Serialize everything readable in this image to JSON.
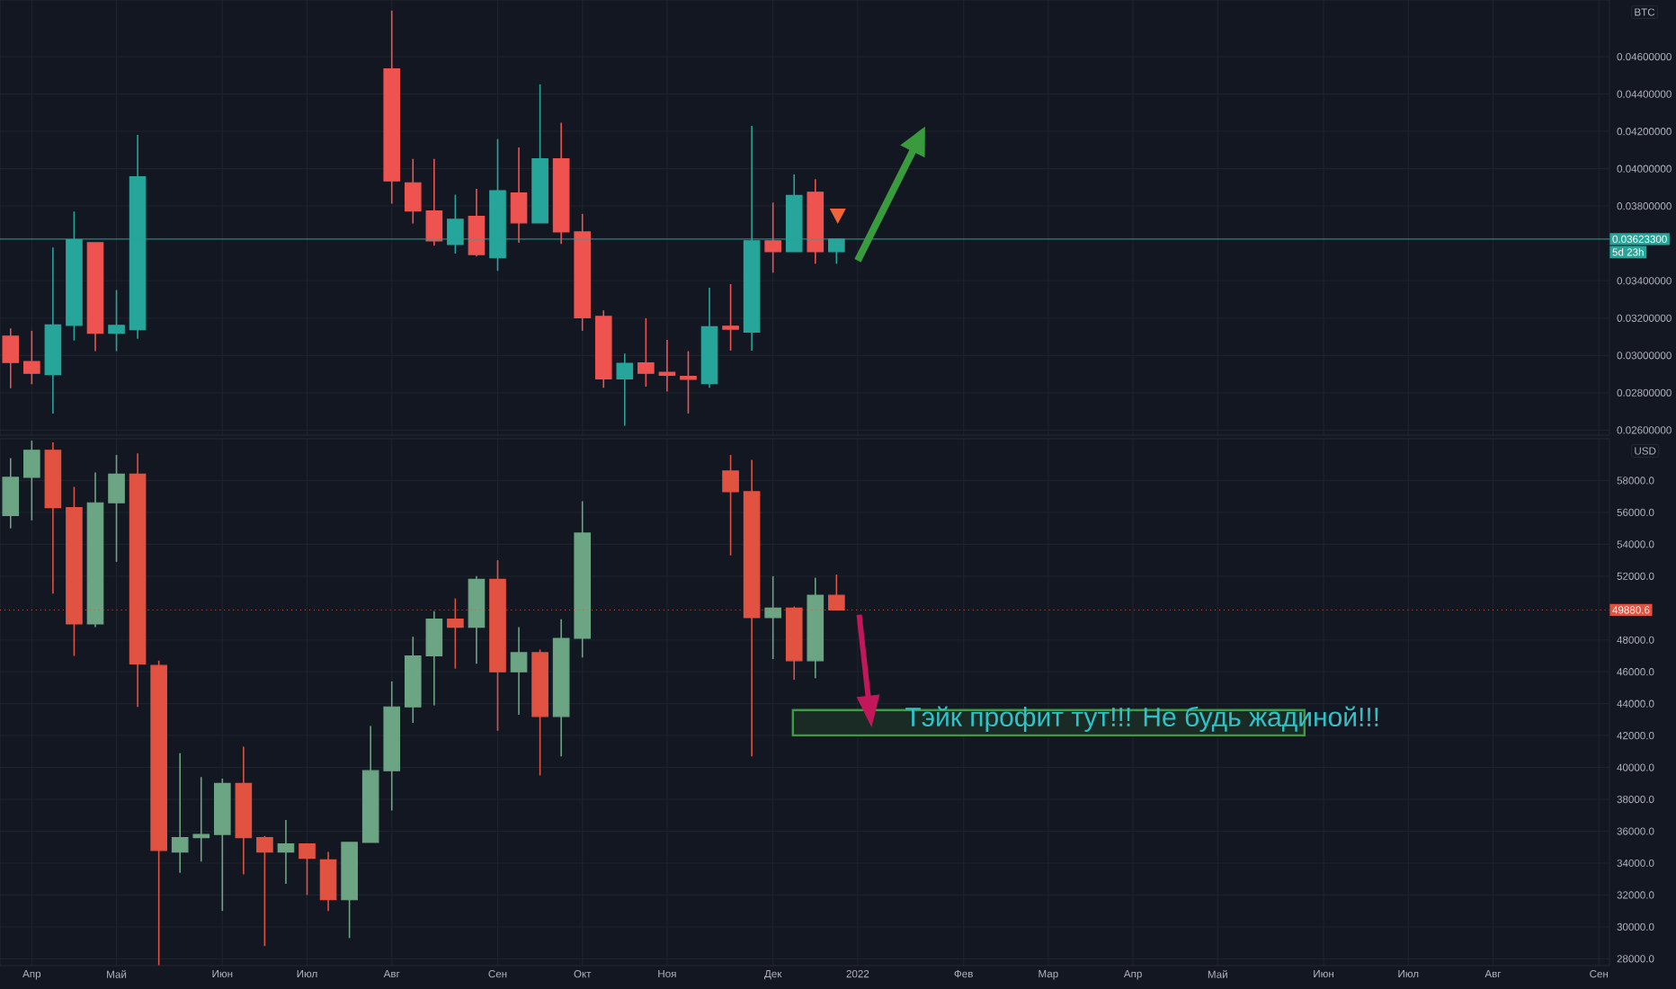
{
  "chart_data": [
    {
      "type": "candlestick",
      "ylabel": "BTC",
      "grid": true,
      "categories": [
        null,
        null,
        null,
        null,
        null,
        null,
        null,
        null,
        null,
        null,
        null,
        null,
        null,
        null,
        null,
        null,
        null,
        null,
        null,
        null,
        null,
        null,
        null,
        null,
        null,
        null,
        null,
        null,
        null,
        null,
        null,
        null,
        null,
        null,
        null,
        null,
        null,
        null,
        null,
        null,
        null,
        null,
        null,
        null,
        null,
        null,
        null,
        null,
        null,
        null,
        null,
        null,
        null,
        null,
        null,
        null,
        null,
        null,
        null,
        null,
        null,
        null,
        null,
        null,
        null,
        null,
        null,
        null,
        null,
        null,
        null,
        null,
        null,
        null,
        null,
        null
      ],
      "ohlc": [
        [
          0.03103,
          0.03145,
          0.02824,
          0.02962
        ],
        [
          0.02968,
          0.03132,
          0.02846,
          0.02904
        ],
        [
          0.02897,
          0.03578,
          0.02689,
          0.03164
        ],
        [
          0.03161,
          0.03771,
          0.0308,
          0.0362
        ],
        [
          0.03604,
          0.03604,
          0.03023,
          0.03119
        ],
        [
          0.03119,
          0.0335,
          0.03023,
          0.03161
        ],
        [
          0.03138,
          0.04182,
          0.0309,
          0.03957
        ],
        null,
        null,
        null,
        null,
        null,
        null,
        null,
        null,
        null,
        null,
        null,
        [
          0.04535,
          0.04847,
          0.03813,
          0.03935
        ],
        [
          0.03925,
          0.04053,
          0.03707,
          0.03774
        ],
        [
          0.03774,
          0.04053,
          0.03588,
          0.03614
        ],
        [
          0.03594,
          0.03861,
          0.03546,
          0.03729
        ],
        [
          0.03745,
          0.03893,
          0.0353,
          0.0354
        ],
        [
          0.03524,
          0.04159,
          0.03453,
          0.03883
        ],
        [
          0.0387,
          0.04114,
          0.03604,
          0.0371
        ],
        [
          0.0371,
          0.04452,
          0.0371,
          0.04053
        ],
        [
          0.04053,
          0.04246,
          0.03597,
          0.03662
        ],
        [
          0.03662,
          0.03758,
          0.03132,
          0.03202
        ],
        [
          0.03209,
          0.03241,
          0.02827,
          0.02875
        ],
        [
          0.02875,
          0.0301,
          0.02624,
          0.02958
        ],
        [
          0.0296,
          0.03199,
          0.02833,
          0.02904
        ],
        [
          0.0291,
          0.03084,
          0.02807,
          0.02894
        ],
        [
          0.02888,
          0.03023,
          0.02689,
          0.02872
        ],
        [
          0.02849,
          0.03363,
          0.02827,
          0.03154
        ],
        [
          0.03157,
          0.03382,
          0.03026,
          0.03141
        ],
        [
          0.03125,
          0.0423,
          0.03026,
          0.03614
        ],
        [
          0.03614,
          0.03819,
          0.03443,
          0.03556
        ],
        [
          0.03556,
          0.0397,
          0.03556,
          0.03857
        ],
        [
          0.03874,
          0.03944,
          0.03491,
          0.03556
        ],
        [
          0.03556,
          0.036233,
          0.03491,
          0.036233
        ],
        null,
        null,
        null,
        null,
        null,
        null,
        null,
        null,
        null,
        null,
        null,
        null,
        null,
        null,
        null,
        null,
        null,
        null,
        null,
        null,
        null,
        null,
        null,
        null,
        null,
        null,
        null,
        null,
        null,
        null,
        null,
        null,
        null,
        null,
        null,
        null
      ],
      "colors": [
        "#ef5350",
        "#ef5350",
        "#26a69a",
        "#26a69a",
        "#ef5350",
        "#26a69a",
        "#26a69a",
        null,
        null,
        null,
        null,
        null,
        null,
        null,
        null,
        null,
        null,
        null,
        "#ef5350",
        "#ef5350",
        "#ef5350",
        "#26a69a",
        "#ef5350",
        "#26a69a",
        "#ef5350",
        "#26a69a",
        "#ef5350",
        "#ef5350",
        "#ef5350",
        "#26a69a",
        "#ef5350",
        "#ef5350",
        "#ef5350",
        "#26a69a",
        "#ef5350",
        "#26a69a",
        "#ef5350",
        "#26a69a",
        "#ef5350",
        "#26a69a",
        null,
        null,
        null,
        null,
        null,
        null,
        null,
        null,
        null,
        null,
        null,
        null,
        null,
        null,
        null,
        null,
        null,
        null,
        null,
        null,
        null,
        null,
        null,
        null,
        null,
        null,
        null,
        null,
        null,
        null,
        null,
        null,
        null,
        null,
        null,
        null
      ],
      "ylim": [
        0.02573,
        0.04904
      ],
      "yticks": [
        {
          "value": 0.026,
          "label": "0.02600000"
        },
        {
          "value": 0.028,
          "label": "0.02800000"
        },
        {
          "value": 0.03,
          "label": "0.03000000"
        },
        {
          "value": 0.032,
          "label": "0.03200000"
        },
        {
          "value": 0.034,
          "label": "0.03400000"
        },
        {
          "value": 0.038,
          "label": "0.03800000"
        },
        {
          "value": 0.04,
          "label": "0.04000000"
        },
        {
          "value": 0.042,
          "label": "0.04200000"
        },
        {
          "value": 0.044,
          "label": "0.04400000"
        },
        {
          "value": 0.046,
          "label": "0.04600000"
        }
      ],
      "ref_lines": [
        {
          "axis": "y",
          "value": 0.036233,
          "label": "0.03623300",
          "color": "#26a69a",
          "line_style": "solid"
        }
      ],
      "annotations": [
        "5d 23h"
      ]
    },
    {
      "type": "candlestick",
      "ylabel": "USD",
      "grid": true,
      "categories": [
        null,
        "Апр",
        null,
        null,
        null,
        "Май",
        null,
        null,
        null,
        null,
        "Июн",
        null,
        null,
        null,
        "Июл",
        null,
        null,
        null,
        "Авг",
        null,
        null,
        null,
        null,
        "Сен",
        null,
        null,
        null,
        "Окт",
        null,
        null,
        null,
        "Ноя",
        null,
        null,
        null,
        null,
        "Дек",
        null,
        null,
        null,
        "2022",
        null,
        null,
        null,
        null,
        "Фев",
        null,
        null,
        null,
        "Мар",
        null,
        null,
        null,
        "Апр",
        null,
        null,
        null,
        "Май",
        null,
        null,
        null,
        null,
        "Июн",
        null,
        null,
        null,
        "Июл",
        null,
        null,
        null,
        "Авг",
        null,
        null,
        null,
        null,
        "Сен"
      ],
      "ohlc": [
        [
          55800,
          59400,
          55000,
          58200
        ],
        [
          58200,
          60500,
          55500,
          59900
        ],
        [
          59900,
          60400,
          50900,
          56300
        ],
        [
          56300,
          57600,
          47000,
          49000
        ],
        [
          49000,
          58500,
          48800,
          56600
        ],
        [
          56600,
          59600,
          52900,
          58400
        ],
        [
          58400,
          59700,
          43800,
          46500
        ],
        [
          46400,
          46700,
          27600,
          34800
        ],
        [
          34700,
          40900,
          33400,
          35600
        ],
        [
          35600,
          39400,
          34100,
          35800
        ],
        [
          35800,
          39300,
          31000,
          39000
        ],
        [
          39000,
          41300,
          33300,
          35600
        ],
        [
          35600,
          35700,
          28800,
          34700
        ],
        [
          34700,
          36700,
          32700,
          35200
        ],
        [
          35200,
          35200,
          32000,
          34300
        ],
        [
          34200,
          34700,
          31000,
          31700
        ],
        [
          31700,
          35300,
          29300,
          35300
        ],
        [
          35300,
          42600,
          35300,
          39800
        ],
        [
          39800,
          45400,
          37300,
          43800
        ],
        [
          43800,
          48200,
          42800,
          47000
        ],
        [
          47000,
          49800,
          43900,
          49300
        ],
        [
          49300,
          50600,
          46200,
          48800
        ],
        [
          48800,
          52000,
          46500,
          51800
        ],
        [
          51800,
          53000,
          42300,
          46000
        ],
        [
          46000,
          48800,
          43300,
          47200
        ],
        [
          47200,
          47400,
          39500,
          43200
        ],
        [
          43200,
          49300,
          40700,
          48100
        ],
        [
          48100,
          56700,
          46900,
          54700
        ],
        null,
        null,
        null,
        null,
        null,
        null,
        [
          58600,
          59600,
          53300,
          57300
        ],
        [
          57300,
          59300,
          40700,
          49400
        ],
        [
          49400,
          52000,
          46800,
          50000
        ],
        [
          50000,
          50100,
          45500,
          46700
        ],
        [
          46700,
          51900,
          45600,
          50800
        ],
        [
          50800,
          52100,
          49880.6,
          49880.6
        ],
        null,
        null,
        null,
        null,
        null,
        null,
        null,
        null,
        null,
        null,
        null,
        null,
        null,
        null,
        null,
        null,
        null,
        null,
        null,
        null,
        null,
        null,
        null,
        null,
        null,
        null,
        null,
        null,
        null,
        null,
        null,
        null,
        null,
        null,
        null,
        null
      ],
      "colors": [
        "#6ca583",
        "#6ca583",
        "#e15241",
        "#e15241",
        "#6ca583",
        "#6ca583",
        "#e15241",
        "#e15241",
        "#6ca583",
        "#6ca583",
        "#6ca583",
        "#e15241",
        "#e15241",
        "#6ca583",
        "#e15241",
        "#e15241",
        "#6ca583",
        "#6ca583",
        "#6ca583",
        "#6ca583",
        "#6ca583",
        "#e15241",
        "#6ca583",
        "#e15241",
        "#6ca583",
        "#e15241",
        "#6ca583",
        "#6ca583",
        null,
        null,
        null,
        null,
        null,
        null,
        "#e15241",
        "#e15241",
        "#6ca583",
        "#e15241",
        "#6ca583",
        "#e15241",
        null,
        null,
        null,
        null,
        null,
        null,
        null,
        null,
        null,
        null,
        null,
        null,
        null,
        null,
        null,
        null,
        null,
        null,
        null,
        null,
        null,
        null,
        null,
        null,
        null,
        null,
        null,
        null,
        null,
        null,
        null,
        null,
        null,
        null,
        null,
        null
      ],
      "ylim": [
        27570,
        60620
      ],
      "yticks": [
        {
          "value": 28000,
          "label": "28000.0"
        },
        {
          "value": 30000,
          "label": "30000.0"
        },
        {
          "value": 32000,
          "label": "32000.0"
        },
        {
          "value": 34000,
          "label": "34000.0"
        },
        {
          "value": 36000,
          "label": "36000.0"
        },
        {
          "value": 38000,
          "label": "38000.0"
        },
        {
          "value": 40000,
          "label": "40000.0"
        },
        {
          "value": 42000,
          "label": "42000.0"
        },
        {
          "value": 44000,
          "label": "44000.0"
        },
        {
          "value": 46000,
          "label": "46000.0"
        },
        {
          "value": 48000,
          "label": "48000.0"
        },
        {
          "value": 52000,
          "label": "52000.0"
        },
        {
          "value": 54000,
          "label": "54000.0"
        },
        {
          "value": 56000,
          "label": "56000.0"
        },
        {
          "value": 58000,
          "label": "58000.0"
        }
      ],
      "ref_lines": [
        {
          "axis": "y",
          "value": 49880.6,
          "label": "49880.6",
          "color": "#e15241",
          "line_style": "dotted"
        }
      ],
      "annotations": [
        "Тэйк профит тут!!! Не будь жадиной!!!"
      ]
    }
  ]
}
